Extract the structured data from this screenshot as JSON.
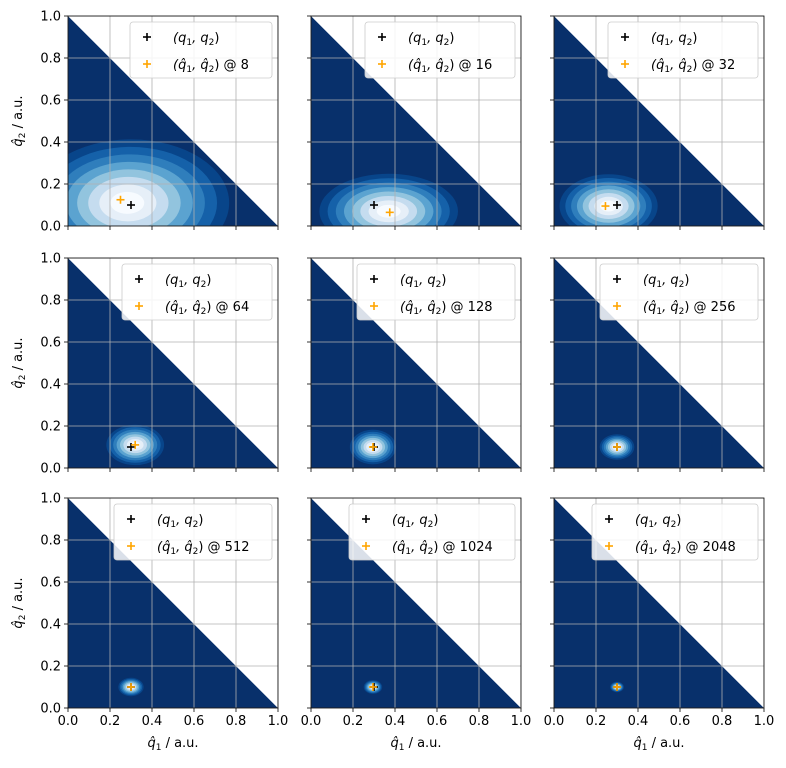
{
  "figure": {
    "xlabel_main": "q̂",
    "xlabel_sub": "1",
    "xlabel_unit": " / a.u.",
    "ylabel_main": "q̂",
    "ylabel_sub": "2",
    "ylabel_unit": " / a.u."
  },
  "legend": {
    "true_main": "(q",
    "true_sub1": "1",
    "true_mid": ", q",
    "true_sub2": "2",
    "true_end": ")",
    "est_main": "(q̂",
    "est_sub1": "1",
    "est_mid": ", q̂",
    "est_sub2": "2",
    "est_end": ") @ "
  },
  "colors": {
    "background_fill": "#08306b",
    "density_levels": [
      "#08458a",
      "#1561a9",
      "#2f7ebc",
      "#5ba3d0",
      "#92c4de",
      "#c5dcef",
      "#e6eff8",
      "#f7fbff"
    ],
    "true_marker": "#000000",
    "estimate_marker": "#ffa500",
    "grid": "#b0b0b0"
  },
  "chart_data": {
    "type": "contour",
    "rows": 3,
    "cols": 3,
    "xlim": [
      0.0,
      1.0
    ],
    "ylim": [
      0.0,
      1.0
    ],
    "x_ticks": [
      "0.0",
      "0.2",
      "0.4",
      "0.6",
      "0.8",
      "1.0"
    ],
    "y_ticks": [
      "0.0",
      "0.2",
      "0.4",
      "0.6",
      "0.8",
      "1.0"
    ],
    "x_tick_values": [
      0.0,
      0.2,
      0.4,
      0.6,
      0.8,
      1.0
    ],
    "y_tick_values": [
      0.0,
      0.2,
      0.4,
      0.6,
      0.8,
      1.0
    ],
    "grid": true,
    "legend_position": "upper right",
    "panels": [
      {
        "n": "8",
        "true": [
          0.3,
          0.1
        ],
        "estimate": [
          0.25,
          0.125
        ],
        "peak": [
          0.28,
          0.11
        ],
        "sx": 0.17,
        "sy": 0.11,
        "skew": 0.02
      },
      {
        "n": "16",
        "true": [
          0.3,
          0.1
        ],
        "estimate": [
          0.375,
          0.065
        ],
        "peak": [
          0.37,
          0.07
        ],
        "sx": 0.12,
        "sy": 0.065,
        "skew": 0.0
      },
      {
        "n": "32",
        "true": [
          0.3,
          0.1
        ],
        "estimate": [
          0.245,
          0.095
        ],
        "peak": [
          0.26,
          0.095
        ],
        "sx": 0.085,
        "sy": 0.055,
        "skew": 0.0
      },
      {
        "n": "64",
        "true": [
          0.3,
          0.1
        ],
        "estimate": [
          0.32,
          0.11
        ],
        "peak": [
          0.32,
          0.11
        ],
        "sx": 0.05,
        "sy": 0.035,
        "skew": 0.0
      },
      {
        "n": "128",
        "true": [
          0.3,
          0.1
        ],
        "estimate": [
          0.295,
          0.1
        ],
        "peak": [
          0.295,
          0.1
        ],
        "sx": 0.04,
        "sy": 0.03,
        "skew": 0.0
      },
      {
        "n": "256",
        "true": [
          0.3,
          0.1
        ],
        "estimate": [
          0.3,
          0.1
        ],
        "peak": [
          0.3,
          0.1
        ],
        "sx": 0.03,
        "sy": 0.022,
        "skew": 0.0
      },
      {
        "n": "512",
        "true": [
          0.3,
          0.1
        ],
        "estimate": [
          0.3,
          0.1
        ],
        "peak": [
          0.3,
          0.1
        ],
        "sx": 0.022,
        "sy": 0.016,
        "skew": 0.0
      },
      {
        "n": "1024",
        "true": [
          0.3,
          0.1
        ],
        "estimate": [
          0.295,
          0.1
        ],
        "peak": [
          0.295,
          0.1
        ],
        "sx": 0.016,
        "sy": 0.012,
        "skew": 0.0
      },
      {
        "n": "2048",
        "true": [
          0.3,
          0.1
        ],
        "estimate": [
          0.3,
          0.1
        ],
        "peak": [
          0.3,
          0.1
        ],
        "sx": 0.012,
        "sy": 0.009,
        "skew": 0.0
      }
    ]
  }
}
